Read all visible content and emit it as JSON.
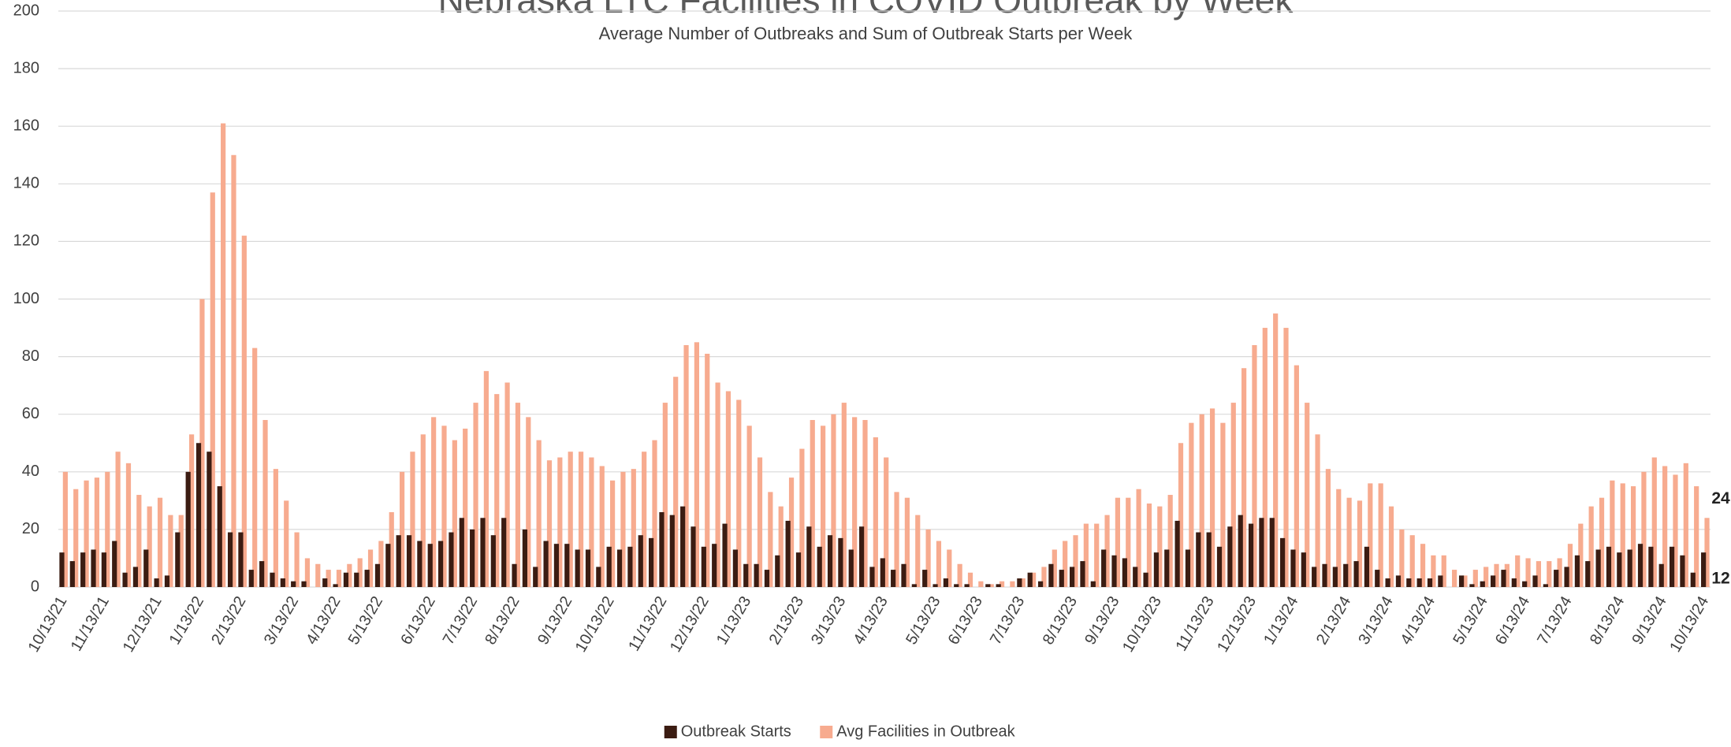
{
  "chart_data": {
    "type": "bar",
    "title": "Nebraska LTC Facilities in COVID Outbreak by Week",
    "subtitle": "Average Number of Outbreaks and Sum of Outbreak Starts per Week",
    "categories": [
      "10/13/21",
      null,
      null,
      null,
      "11/13/21",
      null,
      null,
      null,
      null,
      "12/13/21",
      null,
      null,
      null,
      "1/13/22",
      null,
      null,
      null,
      "2/13/22",
      null,
      null,
      null,
      null,
      "3/13/22",
      null,
      null,
      null,
      "4/13/22",
      null,
      null,
      null,
      "5/13/22",
      null,
      null,
      null,
      null,
      "6/13/22",
      null,
      null,
      null,
      "7/13/22",
      null,
      null,
      null,
      "8/13/22",
      null,
      null,
      null,
      null,
      "9/13/22",
      null,
      null,
      null,
      "10/13/22",
      null,
      null,
      null,
      null,
      "11/13/22",
      null,
      null,
      null,
      "12/13/22",
      null,
      null,
      null,
      "1/13/23",
      null,
      null,
      null,
      null,
      "2/13/23",
      null,
      null,
      null,
      "3/13/23",
      null,
      null,
      null,
      "4/13/23",
      null,
      null,
      null,
      null,
      "5/13/23",
      null,
      null,
      null,
      "6/13/23",
      null,
      null,
      null,
      "7/13/23",
      null,
      null,
      null,
      null,
      "8/13/23",
      null,
      null,
      null,
      "9/13/23",
      null,
      null,
      null,
      "10/13/23",
      null,
      null,
      null,
      null,
      "11/13/23",
      null,
      null,
      null,
      "12/13/23",
      null,
      null,
      null,
      "1/13/24",
      null,
      null,
      null,
      null,
      "2/13/24",
      null,
      null,
      null,
      "3/13/24",
      null,
      null,
      null,
      "4/13/24",
      null,
      null,
      null,
      null,
      "5/13/24",
      null,
      null,
      null,
      "6/13/24",
      null,
      null,
      null,
      "7/13/24",
      null,
      null,
      null,
      null,
      "8/13/24",
      null,
      null,
      null,
      "9/13/24",
      null,
      null,
      null,
      "10/13/24"
    ],
    "series": [
      {
        "name": "Outbreak Starts",
        "color": "#3b1c12",
        "values": [
          12,
          9,
          12,
          13,
          12,
          16,
          5,
          7,
          13,
          3,
          4,
          19,
          40,
          50,
          47,
          35,
          19,
          19,
          6,
          9,
          5,
          3,
          2,
          2,
          0,
          3,
          1,
          5,
          5,
          6,
          8,
          15,
          18,
          18,
          16,
          15,
          16,
          19,
          24,
          20,
          24,
          18,
          24,
          8,
          20,
          7,
          16,
          15,
          15,
          13,
          13,
          7,
          14,
          13,
          14,
          18,
          17,
          26,
          25,
          28,
          21,
          14,
          15,
          22,
          13,
          8,
          8,
          6,
          11,
          23,
          12,
          21,
          14,
          18,
          17,
          13,
          21,
          7,
          10,
          6,
          8,
          1,
          6,
          1,
          3,
          1,
          1,
          0,
          1,
          1,
          0,
          3,
          5,
          2,
          8,
          6,
          7,
          9,
          2,
          13,
          11,
          10,
          7,
          5,
          12,
          13,
          23,
          13,
          19,
          19,
          14,
          21,
          25,
          22,
          24,
          24,
          17,
          13,
          12,
          7,
          8,
          7,
          8,
          9,
          14,
          6,
          3,
          4,
          3,
          3,
          3,
          4,
          0,
          4,
          1,
          2,
          4,
          6,
          3,
          2,
          4,
          1,
          6,
          7,
          11,
          9,
          13,
          14,
          12,
          13,
          15,
          14,
          8,
          14,
          11,
          5,
          12
        ]
      },
      {
        "name": "Avg Facilities in Outbreak",
        "color": "#f7ab8f",
        "values": [
          40,
          34,
          37,
          38,
          40,
          47,
          43,
          32,
          28,
          31,
          25,
          25,
          53,
          100,
          137,
          161,
          150,
          122,
          83,
          58,
          41,
          30,
          19,
          10,
          8,
          6,
          6,
          8,
          10,
          13,
          16,
          26,
          40,
          47,
          53,
          59,
          56,
          51,
          55,
          64,
          75,
          67,
          71,
          64,
          59,
          51,
          44,
          45,
          47,
          47,
          45,
          42,
          37,
          40,
          41,
          47,
          51,
          64,
          73,
          84,
          85,
          81,
          71,
          68,
          65,
          56,
          45,
          33,
          28,
          38,
          48,
          58,
          56,
          60,
          64,
          59,
          58,
          52,
          45,
          33,
          31,
          25,
          20,
          16,
          13,
          8,
          5,
          2,
          1,
          2,
          2,
          3,
          5,
          7,
          13,
          16,
          18,
          22,
          22,
          25,
          31,
          31,
          34,
          29,
          28,
          32,
          50,
          57,
          60,
          62,
          57,
          64,
          76,
          84,
          90,
          95,
          90,
          77,
          64,
          53,
          41,
          34,
          31,
          30,
          36,
          36,
          28,
          20,
          18,
          15,
          11,
          11,
          6,
          4,
          6,
          7,
          8,
          8,
          11,
          10,
          9,
          9,
          10,
          15,
          22,
          28,
          31,
          37,
          36,
          35,
          40,
          45,
          42,
          39,
          43,
          35,
          24
        ]
      }
    ],
    "ylim": [
      0,
      200
    ],
    "yticks": [
      0,
      20,
      40,
      60,
      80,
      100,
      120,
      140,
      160,
      180,
      200
    ],
    "grid": true,
    "legend": "bottom"
  }
}
